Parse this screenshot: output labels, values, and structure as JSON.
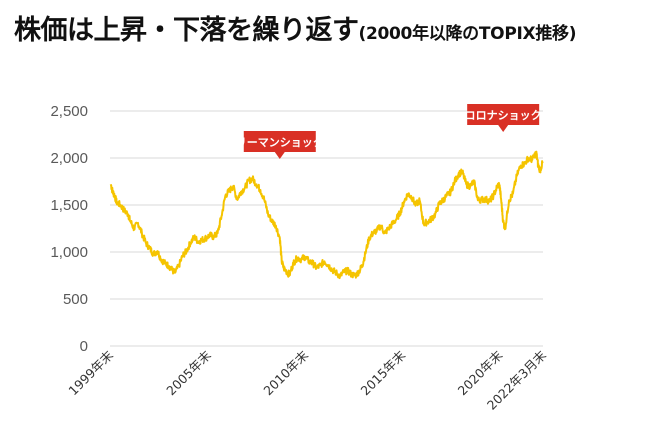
{
  "title": {
    "main": "株価は上昇・下落を繰り返す",
    "sub": "(2000年以降のTOPIX推移)"
  },
  "colors": {
    "line": "#F5C400",
    "callout": "#D93025",
    "grid": "#D9D9D9",
    "axis_text": "#595959"
  },
  "chart_data": {
    "type": "line",
    "title": "株価は上昇・下落を繰り返す(2000年以降のTOPIX推移)",
    "xlabel": "",
    "ylabel": "",
    "xlim": [
      1999.96,
      2022.25
    ],
    "ylim": [
      0,
      2500
    ],
    "yticks": [
      0,
      500,
      1000,
      1500,
      2000,
      2500
    ],
    "ytick_labels": [
      "0",
      "500",
      "1,000",
      "1,500",
      "2,000",
      "2,500"
    ],
    "xticks": [
      {
        "x": 1999.96,
        "label": "1999年末"
      },
      {
        "x": 2005.0,
        "label": "2005年末"
      },
      {
        "x": 2010.0,
        "label": "2010年末"
      },
      {
        "x": 2015.0,
        "label": "2015年末"
      },
      {
        "x": 2020.0,
        "label": "2020年末"
      },
      {
        "x": 2022.25,
        "label": "2022年3月末"
      }
    ],
    "grid": true,
    "legend": "none",
    "annotations": [
      {
        "label": "リーマンショック",
        "x": 2008.7
      },
      {
        "label": "コロナショック",
        "x": 2020.2
      }
    ],
    "series": [
      {
        "x": [
          2000.0,
          2000.1,
          2000.2,
          2000.3,
          2000.5,
          2000.7,
          2000.9,
          2001.0,
          2001.2,
          2001.4,
          2001.6,
          2001.8,
          2002.0,
          2002.2,
          2002.4,
          2002.6,
          2002.8,
          2003.0,
          2003.2,
          2003.3,
          2003.5,
          2003.7,
          2003.9,
          2004.1,
          2004.3,
          2004.5,
          2004.7,
          2004.9,
          2005.1,
          2005.3,
          2005.5,
          2005.7,
          2005.9,
          2006.1,
          2006.3,
          2006.5,
          2006.7,
          2006.9,
          2007.1,
          2007.3,
          2007.5,
          2007.7,
          2007.9,
          2008.1,
          2008.3,
          2008.5,
          2008.7,
          2008.8,
          2008.9,
          2009.1,
          2009.2,
          2009.4,
          2009.6,
          2009.8,
          2010.0,
          2010.2,
          2010.4,
          2010.6,
          2010.8,
          2011.0,
          2011.2,
          2011.4,
          2011.6,
          2011.8,
          2012.0,
          2012.2,
          2012.4,
          2012.6,
          2012.8,
          2012.95,
          2013.1,
          2013.3,
          2013.5,
          2013.7,
          2013.9,
          2014.1,
          2014.3,
          2014.5,
          2014.7,
          2014.9,
          2015.1,
          2015.3,
          2015.5,
          2015.7,
          2015.9,
          2016.1,
          2016.3,
          2016.5,
          2016.7,
          2016.9,
          2017.1,
          2017.3,
          2017.5,
          2017.7,
          2017.9,
          2018.1,
          2018.3,
          2018.5,
          2018.7,
          2018.9,
          2019.1,
          2019.3,
          2019.5,
          2019.7,
          2019.9,
          2020.0,
          2020.1,
          2020.2,
          2020.3,
          2020.5,
          2020.7,
          2020.9,
          2021.1,
          2021.3,
          2021.5,
          2021.7,
          2021.9,
          2022.0,
          2022.1,
          2022.25
        ],
        "y": [
          1720,
          1640,
          1600,
          1530,
          1500,
          1440,
          1400,
          1330,
          1250,
          1310,
          1200,
          1100,
          1040,
          980,
          1010,
          920,
          880,
          850,
          800,
          780,
          850,
          960,
          1010,
          1100,
          1160,
          1110,
          1130,
          1150,
          1180,
          1160,
          1200,
          1380,
          1600,
          1650,
          1700,
          1560,
          1640,
          1680,
          1760,
          1780,
          1720,
          1660,
          1560,
          1400,
          1330,
          1280,
          1150,
          900,
          830,
          780,
          760,
          880,
          940,
          920,
          950,
          900,
          880,
          830,
          860,
          900,
          860,
          810,
          780,
          740,
          790,
          800,
          760,
          750,
          800,
          860,
          980,
          1150,
          1200,
          1230,
          1280,
          1200,
          1250,
          1300,
          1350,
          1420,
          1540,
          1620,
          1580,
          1500,
          1550,
          1300,
          1320,
          1350,
          1400,
          1510,
          1550,
          1600,
          1640,
          1750,
          1830,
          1850,
          1720,
          1700,
          1750,
          1550,
          1560,
          1560,
          1540,
          1600,
          1700,
          1720,
          1550,
          1320,
          1250,
          1550,
          1620,
          1810,
          1920,
          1940,
          2000,
          1980,
          2060,
          1920,
          1870,
          1960
        ]
      }
    ]
  }
}
